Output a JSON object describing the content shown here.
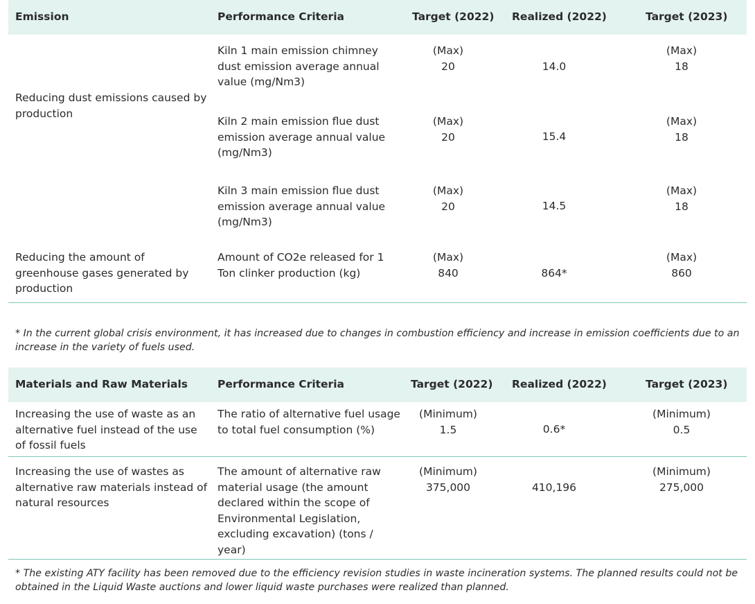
{
  "emission": {
    "headers": [
      "Emission",
      "Performance Criteria",
      "Target (2022)",
      "Realized (2022)",
      "Target (2023)"
    ],
    "group1_label": "Reducing dust emissions caused by production",
    "rows": [
      {
        "criteria": "Kiln 1 main emission chimney dust emission average annual value (mg/Nm3)",
        "t22_label": "(Max)",
        "t22": "20",
        "r22": "14.0",
        "t23_label": "(Max)",
        "t23": "18"
      },
      {
        "criteria": "Kiln 2 main emission flue dust emission average annual value (mg/Nm3)",
        "t22_label": "(Max)",
        "t22": "20",
        "r22": "15.4",
        "t23_label": "(Max)",
        "t23": "18"
      },
      {
        "criteria": "Kiln 3 main emission flue dust emission average annual value (mg/Nm3)",
        "t22_label": "(Max)",
        "t22": "20",
        "r22": "14.5",
        "t23_label": "(Max)",
        "t23": "18"
      },
      {
        "label": "Reducing the amount of greenhouse gases generated by production",
        "criteria": "Amount of CO2e released for 1 Ton clinker production (kg)",
        "t22_label": "(Max)",
        "t22": "840",
        "r22": "864*",
        "t23_label": "(Max)",
        "t23": "860"
      }
    ],
    "footnote": "* In the current global crisis environment, it has increased due to changes in combustion efficiency and increase in emission coefficients due to an increase in the variety of fuels used."
  },
  "materials": {
    "headers": [
      "Materials and Raw Materials",
      "Performance Criteria",
      "Target (2022)",
      "Realized (2022)",
      "Target (2023)"
    ],
    "rows": [
      {
        "label": "Increasing the use of waste as an alternative fuel instead of the use of fossil fuels",
        "criteria": "The ratio of alternative fuel usage to total fuel consumption (%)",
        "t22_label": "(Minimum)",
        "t22": "1.5",
        "r22": "0.6*",
        "t23_label": "(Minimum)",
        "t23": "0.5"
      },
      {
        "label": "Increasing the use of wastes as alternative raw materials instead of natural resources",
        "criteria": "The amount of alternative raw material usage (the amount declared within the scope of Environmental Legislation, excluding excavation) (tons / year)",
        "t22_label": "(Minimum)",
        "t22": "375,000",
        "r22": "410,196",
        "t23_label": "(Minimum)",
        "t23": "275,000"
      }
    ],
    "footnote": "* The existing ATY facility has been removed due to the efficiency revision studies in waste incineration systems. The planned results could not be obtained in the Liquid Waste auctions and lower liquid waste purchases were realized than planned."
  }
}
